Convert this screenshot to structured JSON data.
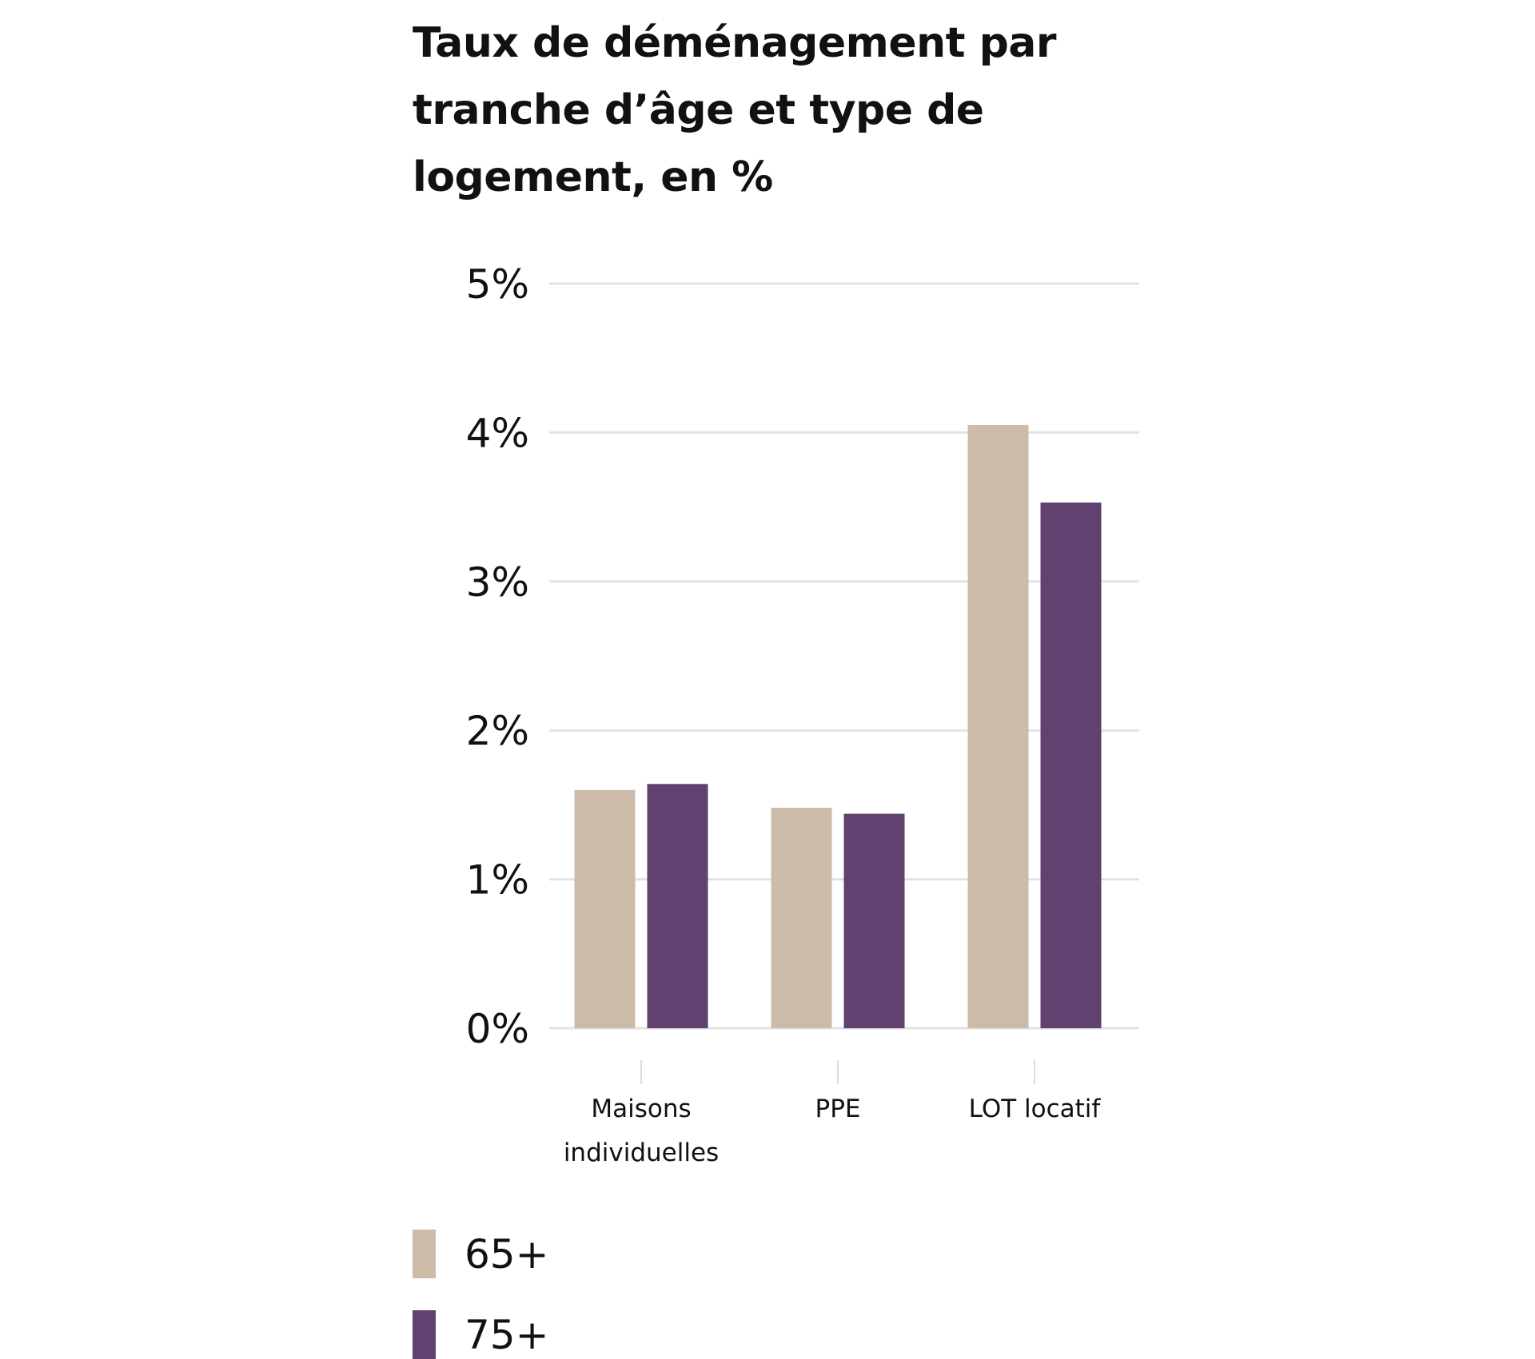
{
  "chart_data": {
    "type": "bar",
    "title": "Taux de déménagement par tranche d’âge et type de logement, en %",
    "categories": [
      "Maisons individuelles",
      "PPE",
      "LOT locatif"
    ],
    "category_label_lines": [
      [
        "Maisons",
        "individuelles"
      ],
      [
        "PPE"
      ],
      [
        "LOT locatif"
      ]
    ],
    "series": [
      {
        "name": "65+",
        "color": "#cbbba8",
        "values": [
          1.6,
          1.48,
          4.05
        ]
      },
      {
        "name": "75+",
        "color": "#604170",
        "values": [
          1.64,
          1.44,
          3.53
        ]
      }
    ],
    "ylim": [
      0,
      5
    ],
    "yticks": [
      0,
      1,
      2,
      3,
      4,
      5
    ],
    "ytick_labels": [
      "0%",
      "1%",
      "2%",
      "3%",
      "4%",
      "5%"
    ],
    "xlabel": "",
    "ylabel": "",
    "grid": true,
    "legend_position": "bottom-left"
  }
}
